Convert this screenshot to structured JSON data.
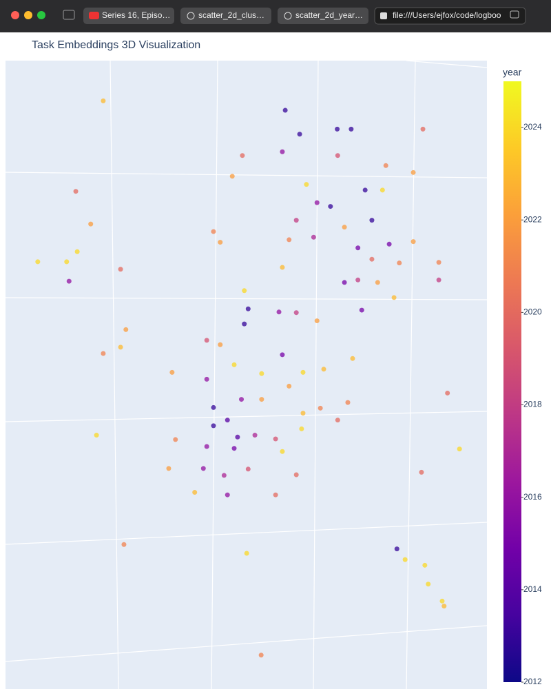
{
  "browser": {
    "tabs": [
      "Series 16, Episo…",
      "scatter_2d_clus…",
      "scatter_2d_year…"
    ],
    "address": "file:///Users/ejfox/code/logboo"
  },
  "chart_data": {
    "type": "scatter3d",
    "title": "Task Embeddings 3D Visualization",
    "xlim": [
      0,
      100
    ],
    "ylim": [
      0,
      100
    ],
    "colorbar": {
      "title": "year",
      "lim": [
        2012,
        2025
      ],
      "ticks": [
        2012,
        2014,
        2016,
        2018,
        2020,
        2022,
        2024
      ],
      "colorscale": [
        "#0d0887",
        "#46039f",
        "#7201a8",
        "#9c179e",
        "#bd3786",
        "#d8576b",
        "#ed7953",
        "#fb9f3a",
        "#fdca26",
        "#f0f921"
      ]
    },
    "points": {
      "x": [
        20.3,
        58.1,
        61.1,
        68.9,
        71.8,
        86.7,
        57.5,
        49.2,
        47.1,
        14.6,
        67.5,
        64.7,
        62.5,
        69.0,
        74.7,
        78.3,
        79.0,
        84.7,
        76.1,
        60.4,
        70.4,
        17.7,
        43.2,
        44.6,
        58.9,
        64.0,
        73.2,
        79.7,
        84.7,
        6.7,
        12.7,
        14.9,
        23.9,
        13.2,
        57.5,
        76.1,
        81.8,
        90.0,
        90.0,
        70.4,
        73.2,
        77.3,
        80.7,
        49.6,
        50.4,
        56.8,
        60.4,
        74.0,
        64.7,
        49.6,
        25.0,
        20.3,
        23.9,
        41.8,
        44.6,
        57.5,
        72.1,
        66.1,
        34.6,
        41.8,
        47.5,
        53.2,
        58.9,
        61.8,
        43.2,
        46.1,
        49.0,
        53.2,
        61.8,
        65.4,
        71.1,
        69.0,
        91.8,
        18.9,
        43.2,
        48.2,
        51.8,
        56.1,
        61.5,
        35.3,
        41.8,
        47.5,
        57.5,
        94.3,
        33.9,
        41.1,
        45.4,
        50.4,
        60.4,
        86.4,
        39.3,
        46.1,
        56.1,
        24.6,
        50.1,
        81.3,
        83.0,
        87.1,
        87.8,
        90.7,
        91.1,
        53.1
      ],
      "y": [
        93.6,
        92.1,
        88.3,
        89.1,
        89.1,
        89.1,
        85.5,
        84.9,
        81.6,
        79.2,
        76.8,
        77.4,
        80.3,
        84.9,
        79.4,
        79.4,
        83.3,
        82.2,
        74.6,
        74.6,
        73.5,
        74.0,
        72.8,
        71.1,
        71.5,
        71.9,
        70.2,
        70.8,
        71.2,
        68.0,
        68.0,
        69.6,
        66.8,
        64.9,
        67.1,
        68.4,
        67.8,
        67.9,
        65.1,
        64.7,
        65.1,
        64.7,
        62.3,
        63.4,
        60.5,
        60.0,
        59.9,
        60.3,
        58.6,
        58.1,
        57.2,
        53.4,
        54.4,
        55.5,
        54.8,
        53.2,
        52.6,
        50.9,
        50.4,
        49.3,
        51.6,
        50.2,
        48.2,
        50.4,
        44.8,
        42.8,
        46.1,
        46.1,
        43.9,
        44.7,
        45.6,
        42.8,
        47.1,
        40.4,
        41.9,
        40.1,
        40.4,
        39.8,
        41.4,
        39.7,
        38.6,
        38.3,
        37.8,
        38.2,
        35.1,
        35.1,
        34.0,
        35.0,
        34.1,
        34.5,
        31.3,
        30.9,
        30.9,
        23.0,
        21.6,
        22.3,
        20.6,
        19.7,
        16.7,
        14.0,
        13.2,
        5.4
      ],
      "values": [
        2023,
        2013,
        2013,
        2013,
        2013,
        2020,
        2016,
        2020,
        2022,
        2020,
        2013,
        2016,
        2024,
        2019,
        2013,
        2024,
        2021,
        2022,
        2013,
        2018,
        2022,
        2022,
        2021,
        2022,
        2021,
        2017,
        2015,
        2015,
        2022,
        2024,
        2024,
        2024,
        2020,
        2016,
        2023,
        2020,
        2021,
        2021,
        2018,
        2015,
        2018,
        2022,
        2023,
        2024,
        2013,
        2016,
        2018,
        2015,
        2022,
        2013,
        2022,
        2021,
        2023,
        2019,
        2022,
        2015,
        2023,
        2023,
        2022,
        2016,
        2024,
        2024,
        2022,
        2024,
        2013,
        2014,
        2016,
        2022,
        2023,
        2021,
        2021,
        2020,
        2020,
        2024,
        2013,
        2014,
        2017,
        2019,
        2024,
        2021,
        2016,
        2015,
        2024,
        2024,
        2022,
        2016,
        2017,
        2019,
        2020,
        2020,
        2023,
        2016,
        2020,
        2021,
        2024,
        2013,
        2024,
        2024,
        2024,
        2024,
        2023,
        2021
      ]
    }
  }
}
